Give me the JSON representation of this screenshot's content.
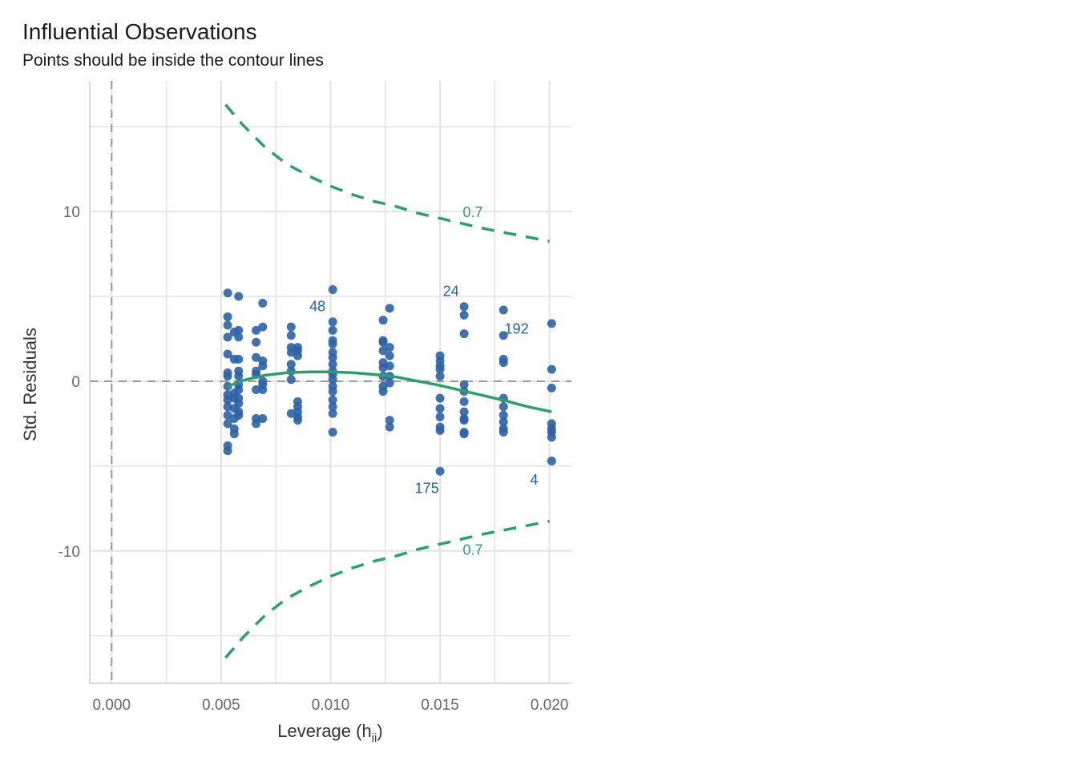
{
  "chart_data": {
    "type": "scatter",
    "title": "Influential Observations",
    "subtitle": "Points should be inside the contour lines",
    "xlabel": "Leverage (h",
    "xlabel_sub": "ii",
    "xlabel_end": ")",
    "ylabel": "Std. Residuals",
    "xlim": [
      -0.001,
      0.021
    ],
    "ylim": [
      -17.8,
      17.7
    ],
    "x_ticks": [
      0.0,
      0.005,
      0.01,
      0.015,
      0.02
    ],
    "x_tick_labels": [
      "0.000",
      "0.005",
      "0.010",
      "0.015",
      "0.020"
    ],
    "y_ticks": [
      -10,
      0,
      10
    ],
    "y_tick_labels": [
      "-10",
      "0",
      "10"
    ],
    "grid": true,
    "colors": {
      "points": "#2e62a6",
      "smooth": "#2e9e6c",
      "contour": "#2e9e6c",
      "refline": "#999999",
      "labels": "#1f5fa8",
      "grid": "#e3e3e3"
    },
    "points": [
      [
        0.0053,
        5.2
      ],
      [
        0.0053,
        3.8
      ],
      [
        0.0053,
        3.3
      ],
      [
        0.0053,
        2.6
      ],
      [
        0.0053,
        1.6
      ],
      [
        0.0053,
        0.5
      ],
      [
        0.0053,
        0.3
      ],
      [
        0.0053,
        -0.3
      ],
      [
        0.0053,
        -0.8
      ],
      [
        0.0053,
        -1.1
      ],
      [
        0.0053,
        -1.5
      ],
      [
        0.0053,
        -2.0
      ],
      [
        0.0053,
        -2.5
      ],
      [
        0.0053,
        -3.8
      ],
      [
        0.0053,
        -4.1
      ],
      [
        0.0056,
        2.9
      ],
      [
        0.0056,
        1.3
      ],
      [
        0.0056,
        -0.7
      ],
      [
        0.0056,
        -1.0
      ],
      [
        0.0056,
        -1.6
      ],
      [
        0.0056,
        -2.2
      ],
      [
        0.0056,
        -2.8
      ],
      [
        0.0056,
        -3.1
      ],
      [
        0.0058,
        5.0
      ],
      [
        0.0058,
        3.0
      ],
      [
        0.0058,
        2.6
      ],
      [
        0.0058,
        1.3
      ],
      [
        0.0058,
        0.6
      ],
      [
        0.0058,
        0.3
      ],
      [
        0.0058,
        -0.2
      ],
      [
        0.0058,
        -0.5
      ],
      [
        0.0058,
        -1.0
      ],
      [
        0.0058,
        -1.3
      ],
      [
        0.0058,
        -1.8
      ],
      [
        0.0058,
        -2.0
      ],
      [
        0.0066,
        3.0
      ],
      [
        0.0066,
        2.3
      ],
      [
        0.0066,
        1.4
      ],
      [
        0.0066,
        0.6
      ],
      [
        0.0066,
        0.4
      ],
      [
        0.0066,
        -0.5
      ],
      [
        0.0066,
        -2.2
      ],
      [
        0.0066,
        -2.5
      ],
      [
        0.0069,
        4.6
      ],
      [
        0.0069,
        3.2
      ],
      [
        0.0069,
        1.2
      ],
      [
        0.0069,
        0.9
      ],
      [
        0.0069,
        0.0
      ],
      [
        0.0069,
        -0.2
      ],
      [
        0.0069,
        -0.5
      ],
      [
        0.0069,
        -2.2
      ],
      [
        0.0082,
        3.2
      ],
      [
        0.0082,
        2.7
      ],
      [
        0.0082,
        2.0
      ],
      [
        0.0082,
        1.7
      ],
      [
        0.0082,
        1.0
      ],
      [
        0.0082,
        0.6
      ],
      [
        0.0082,
        0.1
      ],
      [
        0.0082,
        -1.9
      ],
      [
        0.0085,
        2.0
      ],
      [
        0.0085,
        1.8
      ],
      [
        0.0085,
        1.5
      ],
      [
        0.0085,
        -1.2
      ],
      [
        0.0085,
        -1.5
      ],
      [
        0.0085,
        -1.8
      ],
      [
        0.0085,
        -2.1
      ],
      [
        0.0085,
        -2.3
      ],
      [
        0.0101,
        5.4
      ],
      [
        0.0101,
        3.5
      ],
      [
        0.0101,
        3.0
      ],
      [
        0.0101,
        2.4
      ],
      [
        0.0101,
        2.2
      ],
      [
        0.0101,
        1.7
      ],
      [
        0.0101,
        1.4
      ],
      [
        0.0101,
        1.0
      ],
      [
        0.0101,
        0.6
      ],
      [
        0.0101,
        0.4
      ],
      [
        0.0101,
        0.1
      ],
      [
        0.0101,
        -0.3
      ],
      [
        0.0101,
        -0.6
      ],
      [
        0.0101,
        -1.1
      ],
      [
        0.0101,
        -1.5
      ],
      [
        0.0101,
        -1.9
      ],
      [
        0.0101,
        -3.0
      ],
      [
        0.0124,
        3.6
      ],
      [
        0.0124,
        2.4
      ],
      [
        0.0124,
        2.3
      ],
      [
        0.0124,
        1.8
      ],
      [
        0.0124,
        1.1
      ],
      [
        0.0124,
        0.8
      ],
      [
        0.0124,
        0.3
      ],
      [
        0.0124,
        -0.3
      ],
      [
        0.0124,
        -0.6
      ],
      [
        0.0127,
        4.3
      ],
      [
        0.0127,
        2.0
      ],
      [
        0.0127,
        1.5
      ],
      [
        0.0127,
        0.9
      ],
      [
        0.0127,
        0.3
      ],
      [
        0.0127,
        -0.1
      ],
      [
        0.0127,
        -2.3
      ],
      [
        0.0127,
        -2.7
      ],
      [
        0.015,
        1.5
      ],
      [
        0.015,
        1.2
      ],
      [
        0.015,
        0.9
      ],
      [
        0.015,
        0.7
      ],
      [
        0.015,
        0.3
      ],
      [
        0.015,
        -1.0
      ],
      [
        0.015,
        -1.6
      ],
      [
        0.015,
        -2.1
      ],
      [
        0.015,
        -2.7
      ],
      [
        0.015,
        -2.9
      ],
      [
        0.015,
        -5.3
      ],
      [
        0.0161,
        4.4
      ],
      [
        0.0161,
        3.9
      ],
      [
        0.0161,
        2.8
      ],
      [
        0.0161,
        -0.2
      ],
      [
        0.0161,
        -0.6
      ],
      [
        0.0161,
        -1.2
      ],
      [
        0.0161,
        -1.8
      ],
      [
        0.0161,
        -2.2
      ],
      [
        0.0161,
        -2.3
      ],
      [
        0.0161,
        -3.0
      ],
      [
        0.0161,
        -3.1
      ],
      [
        0.0179,
        4.2
      ],
      [
        0.0179,
        2.7
      ],
      [
        0.0179,
        1.3
      ],
      [
        0.0179,
        1.1
      ],
      [
        0.0179,
        -1.0
      ],
      [
        0.0179,
        -1.5
      ],
      [
        0.0179,
        -2.0
      ],
      [
        0.0179,
        -2.4
      ],
      [
        0.0179,
        -2.8
      ],
      [
        0.0179,
        -3.0
      ],
      [
        0.0201,
        3.4
      ],
      [
        0.0201,
        0.7
      ],
      [
        0.0201,
        -0.4
      ],
      [
        0.0201,
        -2.5
      ],
      [
        0.0201,
        -2.8
      ],
      [
        0.0201,
        -3.0
      ],
      [
        0.0201,
        -3.3
      ],
      [
        0.0201,
        -4.7
      ]
    ],
    "point_labels": [
      {
        "text": "48",
        "x": 0.0094,
        "y": 4.4
      },
      {
        "text": "24",
        "x": 0.0155,
        "y": 5.3
      },
      {
        "text": "192",
        "x": 0.0185,
        "y": 3.1
      },
      {
        "text": "175",
        "x": 0.0144,
        "y": -6.3
      },
      {
        "text": "4",
        "x": 0.0193,
        "y": -5.8
      }
    ],
    "smooth_line": [
      [
        0.0053,
        -0.3
      ],
      [
        0.006,
        0.05
      ],
      [
        0.007,
        0.35
      ],
      [
        0.008,
        0.5
      ],
      [
        0.009,
        0.55
      ],
      [
        0.01,
        0.55
      ],
      [
        0.011,
        0.5
      ],
      [
        0.012,
        0.4
      ],
      [
        0.013,
        0.25
      ],
      [
        0.014,
        0.0
      ],
      [
        0.015,
        -0.25
      ],
      [
        0.016,
        -0.55
      ],
      [
        0.017,
        -0.85
      ],
      [
        0.018,
        -1.15
      ],
      [
        0.019,
        -1.5
      ],
      [
        0.0201,
        -1.8
      ]
    ],
    "contour_upper": [
      [
        0.0052,
        16.3
      ],
      [
        0.006,
        15.1
      ],
      [
        0.007,
        13.8
      ],
      [
        0.008,
        12.8
      ],
      [
        0.009,
        12.1
      ],
      [
        0.01,
        11.5
      ],
      [
        0.011,
        11.0
      ],
      [
        0.012,
        10.6
      ],
      [
        0.013,
        10.3
      ],
      [
        0.014,
        9.9
      ],
      [
        0.015,
        9.6
      ],
      [
        0.016,
        9.3
      ],
      [
        0.017,
        9.0
      ],
      [
        0.018,
        8.75
      ],
      [
        0.019,
        8.5
      ],
      [
        0.02,
        8.25
      ]
    ],
    "contour_lower": [
      [
        0.0052,
        -16.3
      ],
      [
        0.006,
        -15.1
      ],
      [
        0.007,
        -13.8
      ],
      [
        0.008,
        -12.8
      ],
      [
        0.009,
        -12.1
      ],
      [
        0.01,
        -11.5
      ],
      [
        0.011,
        -11.0
      ],
      [
        0.012,
        -10.6
      ],
      [
        0.013,
        -10.3
      ],
      [
        0.014,
        -9.9
      ],
      [
        0.015,
        -9.6
      ],
      [
        0.016,
        -9.3
      ],
      [
        0.017,
        -9.0
      ],
      [
        0.018,
        -8.75
      ],
      [
        0.019,
        -8.5
      ],
      [
        0.02,
        -8.25
      ]
    ],
    "contour_labels": [
      {
        "text": "0.7",
        "x": 0.0165,
        "y": 10.0
      },
      {
        "text": "0.7",
        "x": 0.0165,
        "y": -9.9
      }
    ]
  }
}
